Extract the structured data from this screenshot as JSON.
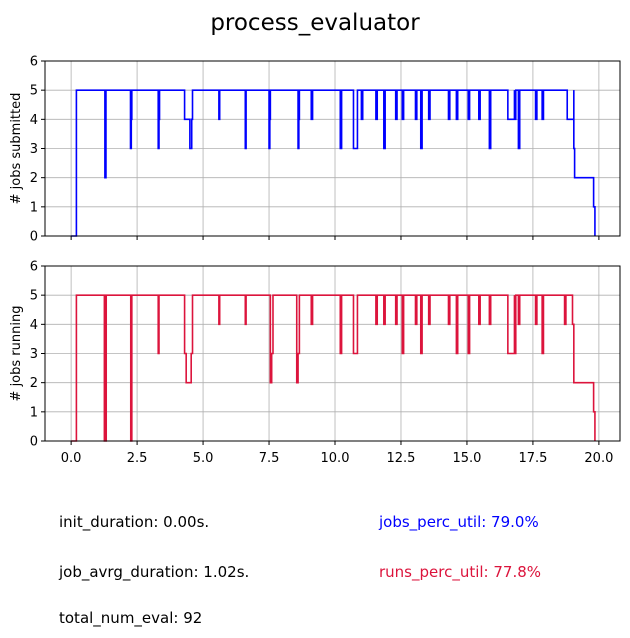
{
  "title": "process_evaluator",
  "colors": {
    "submitted": "#0000ff",
    "running": "#dc143c",
    "text": "#000000",
    "grid": "#b0b0b0"
  },
  "chart_data": [
    {
      "type": "line",
      "step": "post",
      "title": "",
      "xlabel": "",
      "ylabel": "# jobs submitted",
      "xlim": [
        -0.99,
        20.8
      ],
      "ylim": [
        0,
        6
      ],
      "x_ticks": [
        0.0,
        2.5,
        5.0,
        7.5,
        10.0,
        12.5,
        15.0,
        17.5,
        20.0
      ],
      "x_tick_labels_visible": false,
      "y_ticks": [
        0,
        1,
        2,
        3,
        4,
        5,
        6
      ],
      "grid": true,
      "series": [
        {
          "color": "#0000ff",
          "x": [
            0.0,
            0.12,
            0.2,
            1.28,
            1.28,
            1.32,
            2.25,
            2.25,
            2.28,
            2.3,
            2.3,
            3.3,
            3.3,
            3.33,
            3.35,
            3.35,
            4.3,
            4.5,
            4.5,
            4.57,
            4.6,
            5.6,
            5.6,
            5.63,
            6.6,
            6.6,
            6.63,
            7.5,
            7.5,
            7.53,
            7.55,
            7.55,
            7.58,
            8.6,
            8.6,
            8.63,
            8.65,
            8.65,
            8.68,
            9.1,
            9.1,
            9.15,
            10.2,
            10.2,
            10.25,
            10.7,
            10.7,
            10.8,
            10.85,
            11.0,
            11.0,
            11.05,
            11.55,
            11.55,
            11.6,
            11.85,
            11.85,
            11.9,
            12.3,
            12.3,
            12.35,
            12.55,
            12.55,
            12.6,
            13.05,
            13.05,
            13.1,
            13.25,
            13.25,
            13.3,
            13.55,
            13.55,
            13.6,
            14.3,
            14.3,
            14.35,
            14.6,
            14.6,
            14.65,
            15.05,
            15.05,
            15.1,
            15.45,
            15.45,
            15.5,
            15.85,
            15.85,
            15.9,
            16.55,
            16.55,
            16.65,
            16.8,
            16.8,
            16.85,
            16.95,
            16.95,
            17.0,
            17.6,
            17.6,
            17.65,
            17.85,
            17.85,
            17.9,
            18.8,
            18.8,
            19.0,
            19.05,
            19.05,
            19.08,
            19.1,
            19.75,
            19.8,
            19.85
          ],
          "y": [
            0,
            0,
            5,
            5,
            2,
            5,
            5,
            3,
            4,
            5,
            5,
            5,
            3,
            4,
            5,
            5,
            4,
            4,
            3,
            4,
            5,
            5,
            4,
            5,
            5,
            3,
            5,
            5,
            3,
            4,
            5,
            5,
            5,
            5,
            3,
            4,
            5,
            5,
            5,
            5,
            4,
            5,
            5,
            3,
            5,
            5,
            3,
            3,
            5,
            5,
            4,
            5,
            5,
            4,
            5,
            5,
            3,
            5,
            5,
            4,
            5,
            5,
            4,
            5,
            5,
            4,
            5,
            5,
            3,
            5,
            5,
            4,
            5,
            5,
            4,
            5,
            5,
            4,
            5,
            5,
            4,
            5,
            5,
            4,
            5,
            5,
            3,
            5,
            5,
            4,
            4,
            5,
            4,
            5,
            5,
            3,
            5,
            5,
            4,
            5,
            5,
            4,
            5,
            5,
            4,
            4,
            5,
            3,
            2,
            2,
            2,
            1,
            0
          ]
        }
      ]
    },
    {
      "type": "line",
      "step": "post",
      "title": "",
      "xlabel": "",
      "ylabel": "# jobs running",
      "xlim": [
        -0.99,
        20.8
      ],
      "ylim": [
        0,
        6
      ],
      "x_ticks": [
        0.0,
        2.5,
        5.0,
        7.5,
        10.0,
        12.5,
        15.0,
        17.5,
        20.0
      ],
      "x_tick_labels": [
        "0.0",
        "2.5",
        "5.0",
        "7.5",
        "10.0",
        "12.5",
        "15.0",
        "17.5",
        "20.0"
      ],
      "y_ticks": [
        0,
        1,
        2,
        3,
        4,
        5,
        6
      ],
      "grid": true,
      "series": [
        {
          "color": "#dc143c",
          "x": [
            0.0,
            0.12,
            0.2,
            1.26,
            1.26,
            1.29,
            1.31,
            1.33,
            1.36,
            2.26,
            2.26,
            2.3,
            2.34,
            2.38,
            3.3,
            3.3,
            3.33,
            3.36,
            4.3,
            4.36,
            4.4,
            4.5,
            4.55,
            4.6,
            5.6,
            5.6,
            5.63,
            6.6,
            6.6,
            6.63,
            7.55,
            7.55,
            7.6,
            7.65,
            7.7,
            8.55,
            8.55,
            8.6,
            8.65,
            8.7,
            9.1,
            9.1,
            9.15,
            10.2,
            10.2,
            10.25,
            10.7,
            10.7,
            10.8,
            10.85,
            11.55,
            11.55,
            11.6,
            11.85,
            11.85,
            11.9,
            12.3,
            12.3,
            12.35,
            12.55,
            12.55,
            12.6,
            13.05,
            13.05,
            13.1,
            13.25,
            13.25,
            13.3,
            13.55,
            13.55,
            13.6,
            14.3,
            14.3,
            14.35,
            14.6,
            14.6,
            14.65,
            15.05,
            15.05,
            15.1,
            15.45,
            15.45,
            15.5,
            15.85,
            15.85,
            15.9,
            16.55,
            16.55,
            16.65,
            16.8,
            16.8,
            16.85,
            16.95,
            16.95,
            17.0,
            17.6,
            17.6,
            17.65,
            17.85,
            17.85,
            17.9,
            18.7,
            18.7,
            18.75,
            19.0,
            19.05,
            19.1,
            19.75,
            19.8,
            19.85
          ],
          "y": [
            0,
            0,
            5,
            5,
            0,
            5,
            0,
            5,
            5,
            5,
            0,
            5,
            5,
            5,
            5,
            3,
            5,
            5,
            3,
            2,
            2,
            2,
            3,
            5,
            5,
            4,
            5,
            5,
            4,
            5,
            5,
            2,
            3,
            5,
            5,
            5,
            2,
            3,
            5,
            5,
            5,
            4,
            5,
            5,
            3,
            5,
            5,
            3,
            3,
            5,
            5,
            4,
            5,
            5,
            4,
            5,
            5,
            4,
            5,
            5,
            3,
            5,
            5,
            4,
            5,
            5,
            3,
            5,
            5,
            4,
            5,
            5,
            4,
            5,
            5,
            3,
            5,
            5,
            3,
            5,
            5,
            4,
            5,
            5,
            4,
            5,
            5,
            3,
            3,
            5,
            3,
            5,
            5,
            4,
            5,
            5,
            4,
            5,
            5,
            3,
            5,
            5,
            4,
            5,
            4,
            2,
            2,
            2,
            1,
            0
          ]
        }
      ]
    }
  ],
  "stats": {
    "init_duration": "init_duration: 0.00s.",
    "job_avrg_duration": "job_avrg_duration: 1.02s.",
    "total_num_eval": "total_num_eval: 92",
    "jobs_perc_util": "jobs_perc_util: 79.0%",
    "runs_perc_util": "runs_perc_util: 77.8%"
  }
}
